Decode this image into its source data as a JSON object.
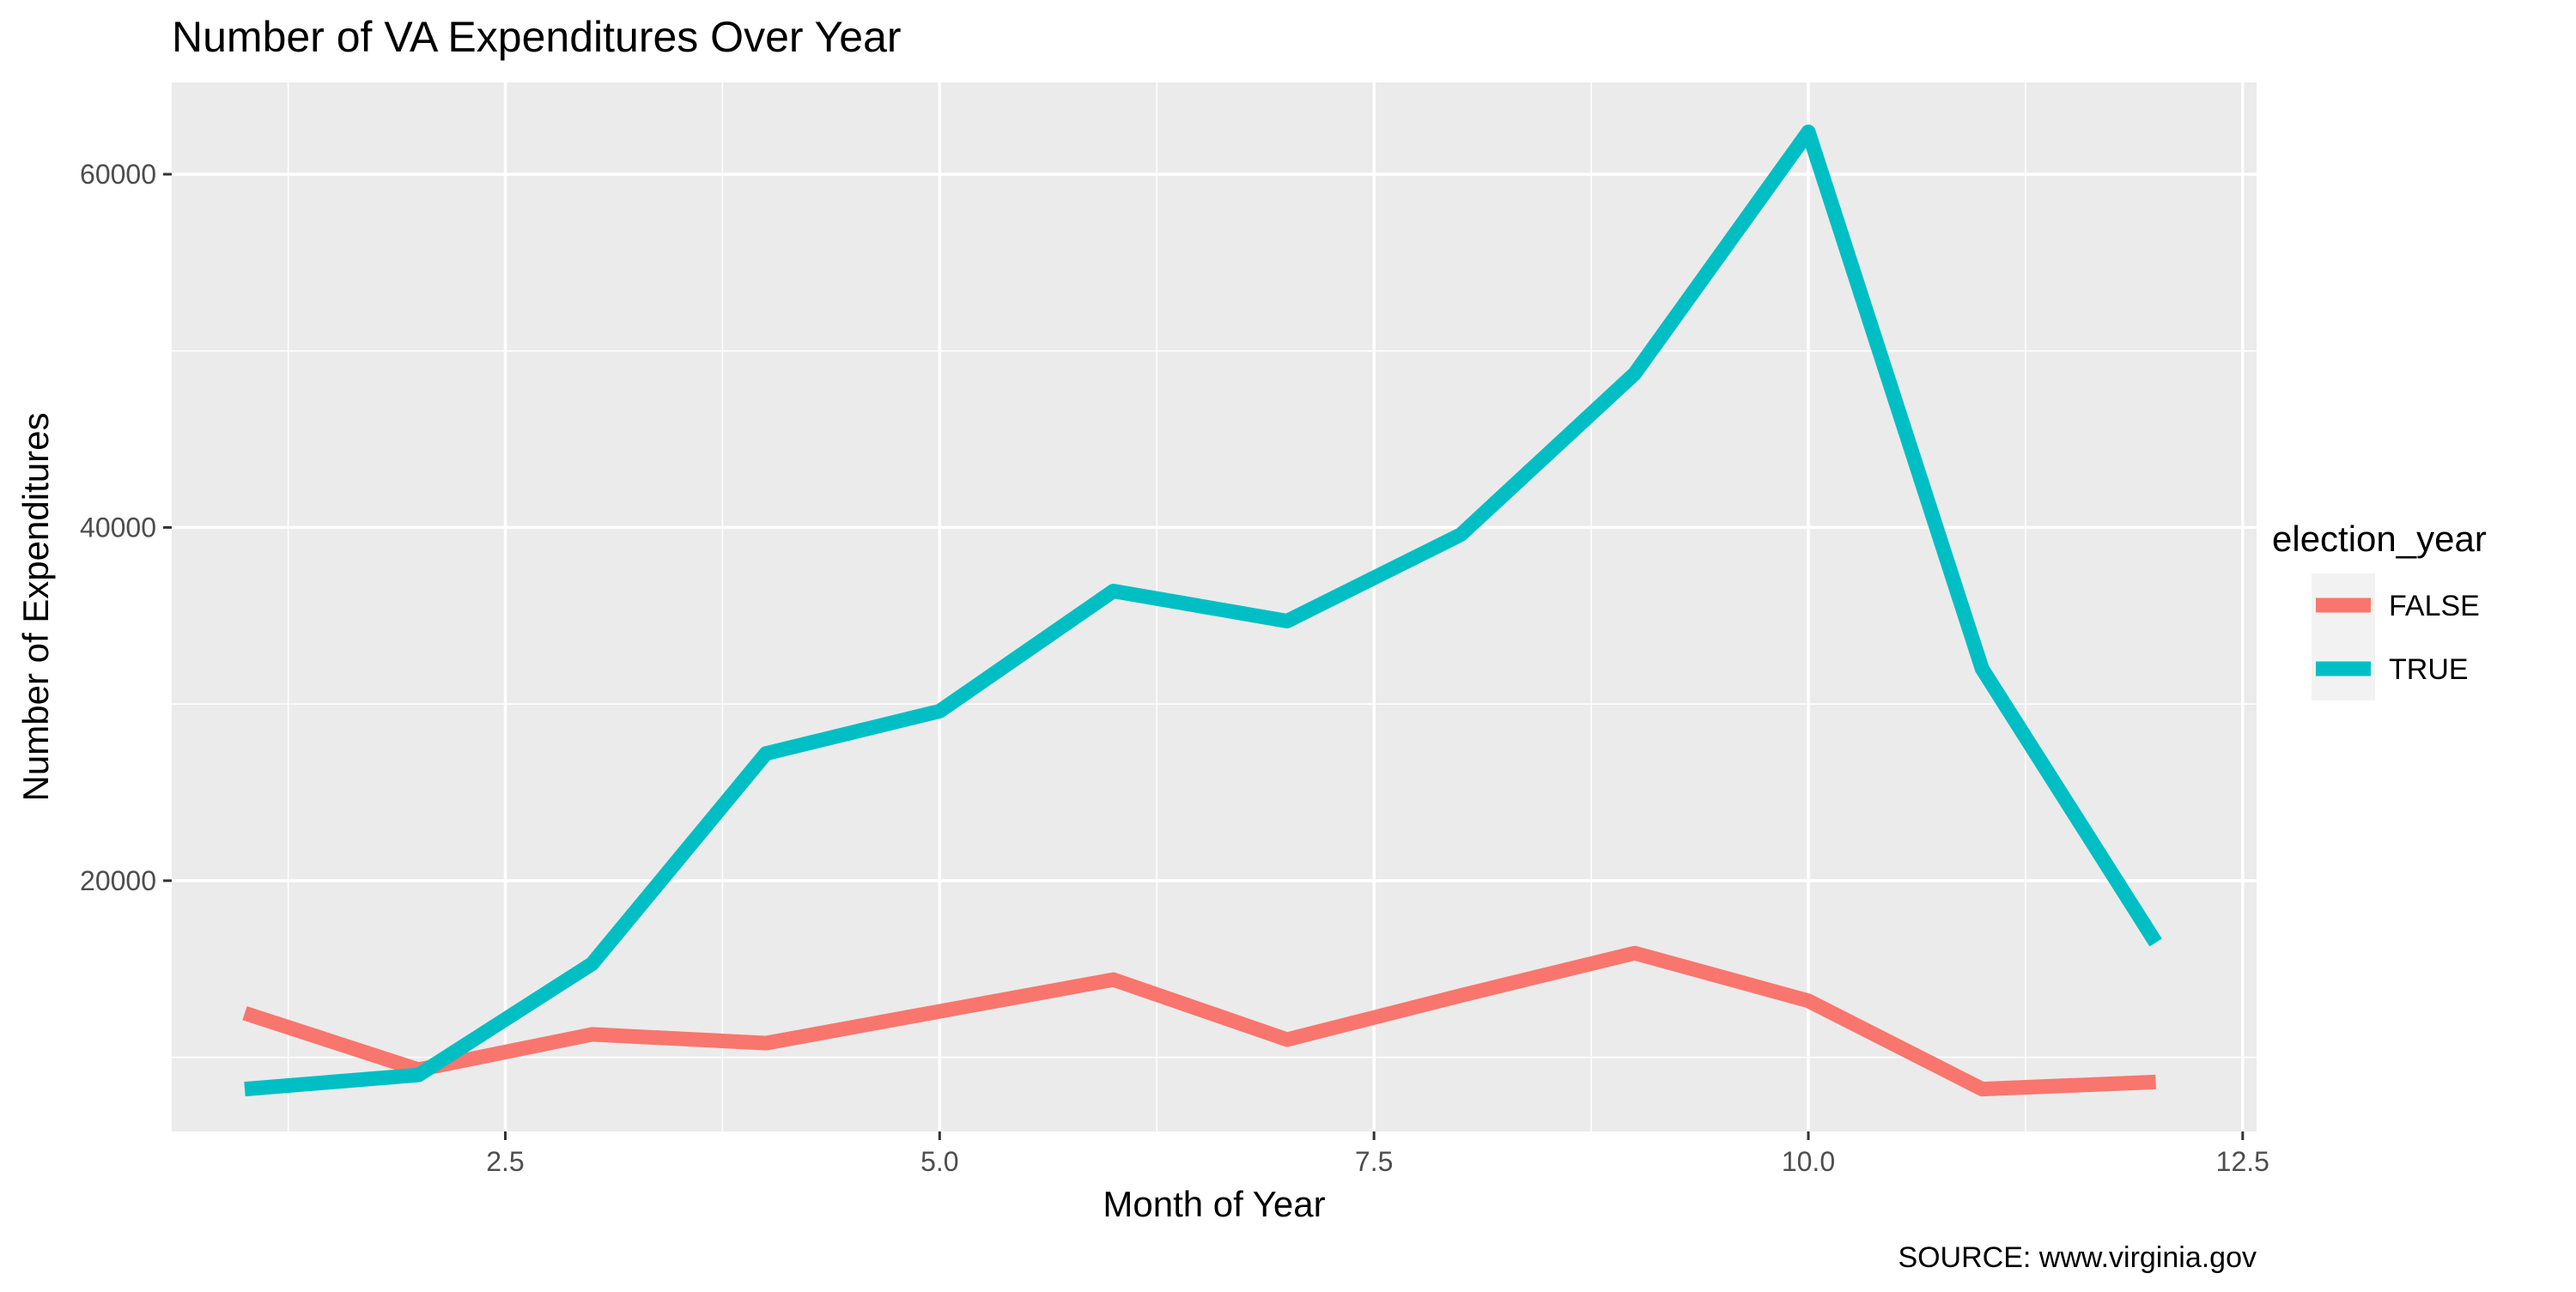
{
  "chart_data": {
    "type": "line",
    "title": "Number of VA Expenditures Over Year",
    "xlabel": "Month of Year",
    "ylabel": "Number of Expenditures",
    "caption": "SOURCE: www.virginia.gov",
    "xlim": [
      0.58,
      12.58
    ],
    "ylim": [
      5800,
      65200
    ],
    "x_ticks": [
      2.5,
      5.0,
      7.5,
      10.0,
      12.5
    ],
    "x_tick_labels": [
      "2.5",
      "5.0",
      "7.5",
      "10.0",
      "12.5"
    ],
    "y_ticks": [
      20000,
      40000,
      60000
    ],
    "y_tick_labels": [
      "20000",
      "40000",
      "60000"
    ],
    "grid": true,
    "legend": {
      "title": "election_year",
      "placement": "right"
    },
    "x": [
      1,
      2,
      3,
      4,
      5,
      6,
      7,
      8,
      9,
      10,
      11,
      12
    ],
    "series": [
      {
        "name": "FALSE",
        "color": "#F8766D",
        "values": [
          12500,
          9300,
          11300,
          10800,
          12600,
          14400,
          11000,
          13500,
          15900,
          13200,
          8200,
          8600
        ]
      },
      {
        "name": "TRUE",
        "color": "#00BFC4",
        "values": [
          8200,
          9000,
          15300,
          27200,
          29600,
          36400,
          34700,
          39600,
          48700,
          62400,
          32000,
          16500
        ]
      }
    ],
    "panel_background": "#EBEBEB",
    "grid_color": "#FFFFFF"
  }
}
